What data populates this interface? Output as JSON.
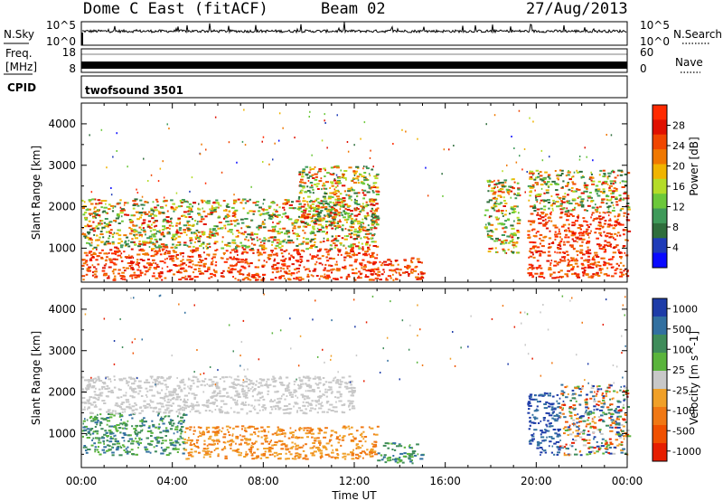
{
  "header": {
    "station": "Dome C East (fitACF)",
    "beam": "Beam 02",
    "date": "27/Aug/2013"
  },
  "noise_panel": {
    "left_label": "N.Sky",
    "right_label": "N.Search",
    "left_ticks": [
      "10^5",
      "10^0"
    ],
    "right_ticks": [
      "10^5",
      "10^0"
    ]
  },
  "freq_panel": {
    "left_label_line1": "Freq.",
    "left_label_line2": "[MHz]",
    "right_label": "Nave",
    "left_ticks": [
      "18",
      "8"
    ],
    "right_ticks": [
      "60",
      "0"
    ]
  },
  "cpid": {
    "label": "CPID",
    "value": "twofsound 3501"
  },
  "chart_data": [
    {
      "type": "heatmap",
      "title": "",
      "xlabel": "",
      "ylabel": "Slant Range [km]",
      "x_ticks": [
        "00:00",
        "04:00",
        "08:00",
        "12:00",
        "16:00",
        "20:00",
        "00:00"
      ],
      "y_ticks": [
        1000,
        2000,
        3000,
        4000
      ],
      "xlim_hours": [
        0,
        24
      ],
      "ylim_km": [
        180,
        4500
      ],
      "colorbar": {
        "label": "Power [dB]",
        "ticks": [
          "4",
          "8",
          "12",
          "16",
          "20",
          "24",
          "28"
        ],
        "colors": [
          "#0a0aff",
          "#1f3cb8",
          "#2f6e3c",
          "#3f9a5a",
          "#6bc83a",
          "#b4dc28",
          "#f0b400",
          "#f07800",
          "#f04600",
          "#e01000",
          "#ff2a00"
        ]
      },
      "regions": [
        {
          "t": [
            0.0,
            13.0
          ],
          "r": [
            250,
            1000
          ],
          "level": "high"
        },
        {
          "t": [
            0.0,
            13.0
          ],
          "r": [
            1000,
            2200
          ],
          "level": "mixed"
        },
        {
          "t": [
            9.5,
            13.0
          ],
          "r": [
            1500,
            3000
          ],
          "level": "mixed"
        },
        {
          "t": [
            13.0,
            15.0
          ],
          "r": [
            250,
            800
          ],
          "level": "high"
        },
        {
          "t": [
            17.7,
            19.2
          ],
          "r": [
            900,
            2700
          ],
          "level": "mixed"
        },
        {
          "t": [
            19.6,
            24.0
          ],
          "r": [
            300,
            1900
          ],
          "level": "high"
        },
        {
          "t": [
            19.6,
            24.0
          ],
          "r": [
            1900,
            2900
          ],
          "level": "mixed"
        }
      ]
    },
    {
      "type": "heatmap",
      "title": "",
      "xlabel": "Time UT",
      "ylabel": "Slant Range [km]",
      "x_ticks": [
        "00:00",
        "04:00",
        "08:00",
        "12:00",
        "16:00",
        "20:00",
        "00:00"
      ],
      "y_ticks": [
        1000,
        2000,
        3000,
        4000
      ],
      "xlim_hours": [
        0,
        24
      ],
      "ylim_km": [
        180,
        4500
      ],
      "colorbar": {
        "label": "Velocity [m s^-1]",
        "ticks": [
          "1000",
          "500",
          "100",
          "25",
          "-25",
          "-100",
          "-500",
          "-1000"
        ],
        "colors": [
          "#1e3ca8",
          "#3270a0",
          "#3f8c5a",
          "#5ab43c",
          "#c8c8c8",
          "#f0a028",
          "#f07814",
          "#f05000",
          "#e61e00"
        ]
      },
      "regions": [
        {
          "t": [
            0.0,
            4.5
          ],
          "r": [
            500,
            1500
          ],
          "level": "positive"
        },
        {
          "t": [
            4.5,
            13.0
          ],
          "r": [
            400,
            1200
          ],
          "level": "negative"
        },
        {
          "t": [
            0.0,
            12.0
          ],
          "r": [
            1500,
            2400
          ],
          "level": "gray"
        },
        {
          "t": [
            13.0,
            15.0
          ],
          "r": [
            300,
            800
          ],
          "level": "positive"
        },
        {
          "t": [
            19.6,
            21.0
          ],
          "r": [
            500,
            2000
          ],
          "level": "strong-positive"
        },
        {
          "t": [
            21.0,
            24.0
          ],
          "r": [
            500,
            2200
          ],
          "level": "mixed"
        }
      ]
    }
  ]
}
